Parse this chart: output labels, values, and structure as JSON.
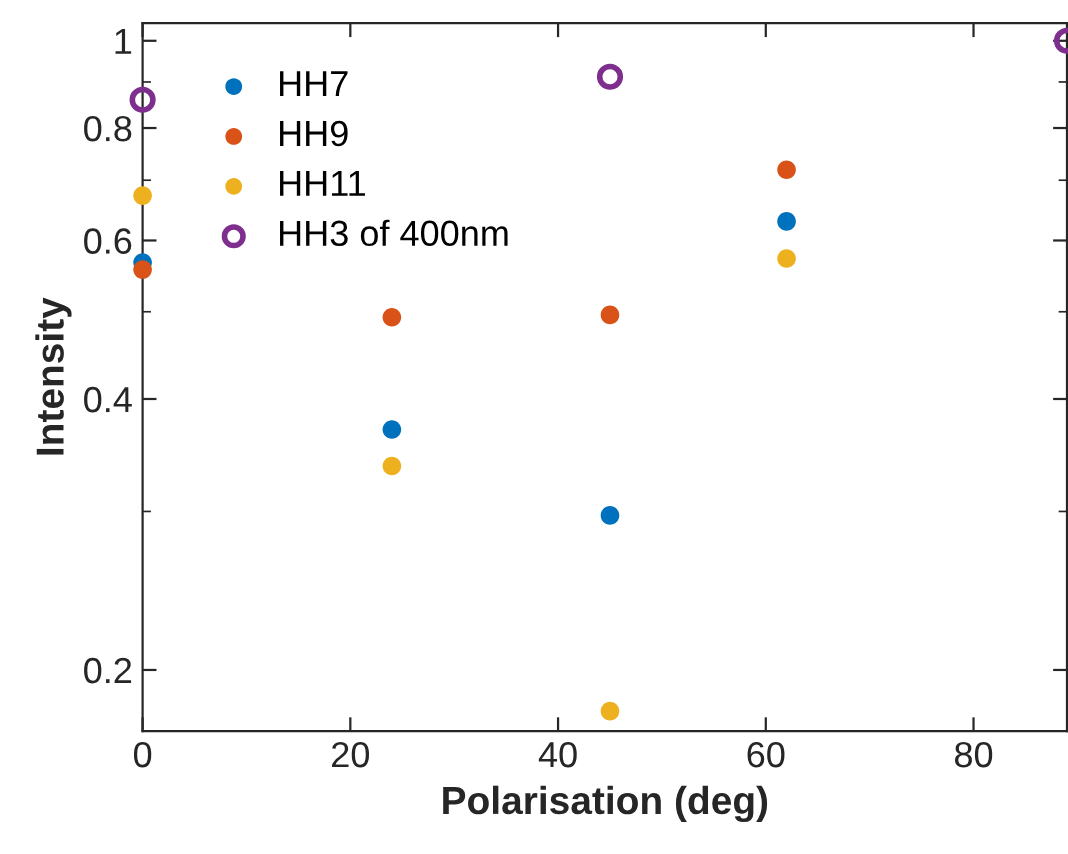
{
  "chart_data": {
    "type": "scatter",
    "xlabel": "Polarisation (deg)",
    "ylabel": "Intensity",
    "x": [
      0,
      24,
      45,
      62
    ],
    "series": [
      {
        "name": "HH7",
        "color": "#0072bd",
        "values": [
          0.567,
          0.37,
          0.297,
          0.63
        ]
      },
      {
        "name": "HH9",
        "color": "#d95319",
        "values": [
          0.557,
          0.493,
          0.496,
          0.719
        ]
      },
      {
        "name": "HH11",
        "color": "#edb120",
        "values": [
          0.673,
          0.337,
          0.18,
          0.573
        ]
      },
      {
        "name": "HH3 of 400nm",
        "color": "#7e2f8e",
        "x": [
          0,
          45,
          89
        ],
        "values": [
          0.86,
          0.912,
          1.0
        ]
      }
    ],
    "marker": "circle",
    "log": "y",
    "xlim": [
      0,
      89
    ],
    "xticks": [
      0,
      20,
      40,
      60,
      80
    ],
    "ylim": [
      0.171,
      1.046
    ],
    "yticks": [
      0.2,
      0.4,
      0.6,
      0.8,
      1
    ],
    "grid": false,
    "legend": "top left"
  }
}
